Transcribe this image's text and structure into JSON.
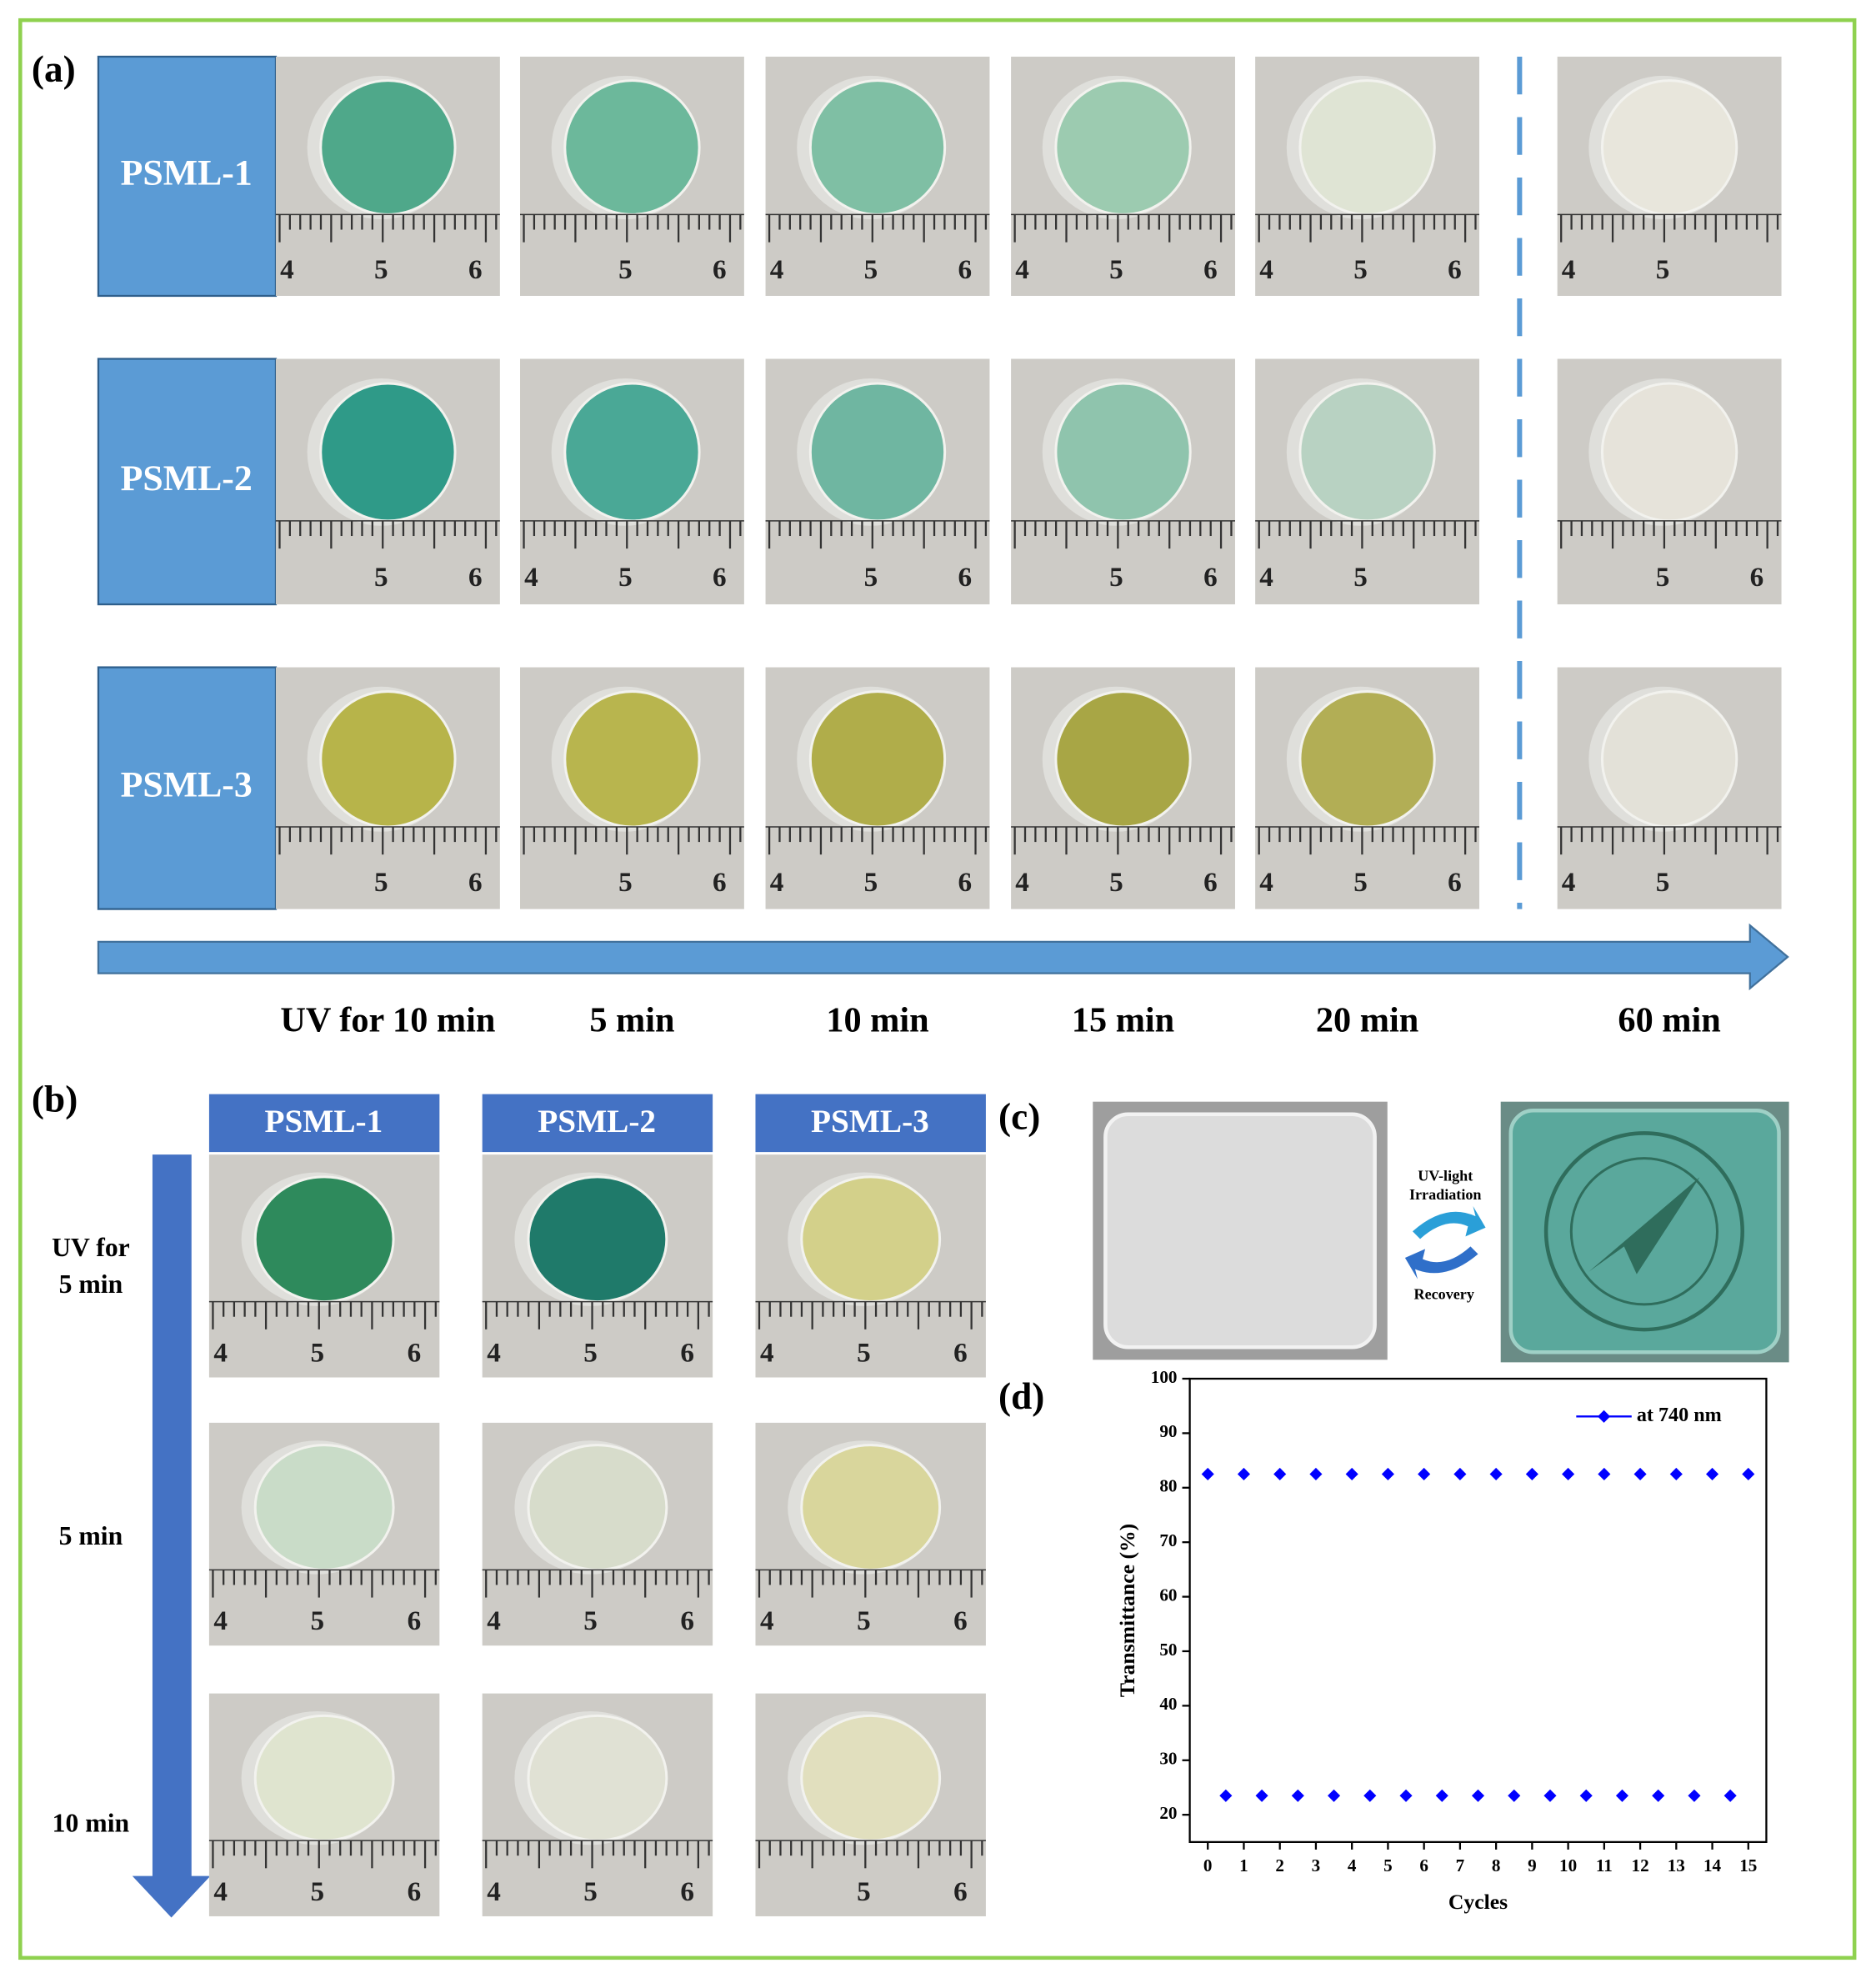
{
  "panels": {
    "a": "(a)",
    "b": "(b)",
    "c": "(c)",
    "d": "(d)"
  },
  "panel_a": {
    "rows": [
      {
        "label": "PSML-1",
        "photos": [
          {
            "tint": "#4fa88a",
            "ruler": [
              "4",
              "5",
              "6"
            ]
          },
          {
            "tint": "#6cb89b",
            "ruler": [
              "5",
              "6"
            ]
          },
          {
            "tint": "#7fbfa4",
            "ruler": [
              "4",
              "5",
              "6"
            ]
          },
          {
            "tint": "#9ccbb0",
            "ruler": [
              "4",
              "5",
              "6"
            ]
          },
          {
            "tint": "#dfe4d4",
            "ruler": [
              "4",
              "5",
              "6"
            ]
          },
          {
            "tint": "#e8e6dc",
            "ruler": [
              "4",
              "5"
            ]
          }
        ]
      },
      {
        "label": "PSML-2",
        "photos": [
          {
            "tint": "#2f9a88",
            "ruler": [
              "5",
              "6"
            ]
          },
          {
            "tint": "#4aa896",
            "ruler": [
              "4",
              "5",
              "6"
            ]
          },
          {
            "tint": "#6fb6a1",
            "ruler": [
              "5",
              "6"
            ]
          },
          {
            "tint": "#8fc4ad",
            "ruler": [
              "5",
              "6"
            ]
          },
          {
            "tint": "#b8d2c2",
            "ruler": [
              "4",
              "5"
            ]
          },
          {
            "tint": "#e6e3da",
            "ruler": [
              "5",
              "6"
            ]
          }
        ]
      },
      {
        "label": "PSML-3",
        "photos": [
          {
            "tint": "#b7b44a",
            "ruler": [
              "5",
              "6"
            ]
          },
          {
            "tint": "#b8b54e",
            "ruler": [
              "5",
              "6"
            ]
          },
          {
            "tint": "#b0ad4a",
            "ruler": [
              "4",
              "5",
              "6"
            ]
          },
          {
            "tint": "#a8a645",
            "ruler": [
              "4",
              "5",
              "6"
            ]
          },
          {
            "tint": "#b2ae55",
            "ruler": [
              "4",
              "5",
              "6"
            ]
          },
          {
            "tint": "#e3e1d8",
            "ruler": [
              "4",
              "5"
            ]
          }
        ]
      }
    ],
    "times": [
      "UV for 10 min",
      "5 min",
      "10 min",
      "15 min",
      "20 min",
      "60 min"
    ]
  },
  "panel_b": {
    "columns": [
      "PSML-1",
      "PSML-2",
      "PSML-3"
    ],
    "rows": [
      {
        "lines": [
          "UV for",
          "5 min"
        ],
        "photos": [
          {
            "tint": "#2e8a5c",
            "ruler": [
              "4",
              "5",
              "6"
            ]
          },
          {
            "tint": "#1f7a6a",
            "ruler": [
              "4",
              "5",
              "6"
            ]
          },
          {
            "tint": "#d3d08a",
            "ruler": [
              "4",
              "5",
              "6"
            ]
          }
        ]
      },
      {
        "lines": [
          "5 min"
        ],
        "photos": [
          {
            "tint": "#c9dcc8",
            "ruler": [
              "4",
              "5",
              "6"
            ]
          },
          {
            "tint": "#d7dccb",
            "ruler": [
              "4",
              "5",
              "6"
            ]
          },
          {
            "tint": "#d9d69c",
            "ruler": [
              "4",
              "5",
              "6"
            ]
          }
        ]
      },
      {
        "lines": [
          "10 min"
        ],
        "photos": [
          {
            "tint": "#dfe4cf",
            "ruler": [
              "4",
              "5",
              "6"
            ]
          },
          {
            "tint": "#e0e1d4",
            "ruler": [
              "4",
              "5",
              "6"
            ]
          },
          {
            "tint": "#e1dfbe",
            "ruler": [
              "5",
              "6"
            ]
          }
        ]
      }
    ]
  },
  "panel_c": {
    "forward": [
      "UV-light",
      "Irradiation"
    ],
    "backward": "Recovery",
    "photos": [
      {
        "tint": "#dcdcdc"
      },
      {
        "tint": "#5aa89c"
      }
    ]
  },
  "chart_data": {
    "type": "line",
    "x": [
      0,
      0.5,
      1,
      1.5,
      2,
      2.5,
      3,
      3.5,
      4,
      4.5,
      5,
      5.5,
      6,
      6.5,
      7,
      7.5,
      8,
      8.5,
      9,
      9.5,
      10,
      10.5,
      11,
      11.5,
      12,
      12.5,
      13,
      13.5,
      14,
      14.5,
      15
    ],
    "series": [
      {
        "name": "at 740 nm",
        "color": "#0000ff",
        "values": [
          82.5,
          23.5,
          82.5,
          23.5,
          82.5,
          23.5,
          82.5,
          23.5,
          82.5,
          23.5,
          82.5,
          23.5,
          82.5,
          23.5,
          82.5,
          23.5,
          82.5,
          23.5,
          82.5,
          23.5,
          82.5,
          23.5,
          82.5,
          23.5,
          82.5,
          23.5,
          82.5,
          23.5,
          82.5,
          23.5,
          82.5
        ]
      }
    ],
    "xlabel": "Cycles",
    "ylabel": "Transmittance (%)",
    "xlim": [
      -0.5,
      15.5
    ],
    "ylim": [
      15,
      100
    ],
    "xticks": [
      0,
      1,
      2,
      3,
      4,
      5,
      6,
      7,
      8,
      9,
      10,
      11,
      12,
      13,
      14,
      15
    ],
    "yticks": [
      20,
      30,
      40,
      50,
      60,
      70,
      80,
      90,
      100
    ],
    "legend": "upper right"
  }
}
